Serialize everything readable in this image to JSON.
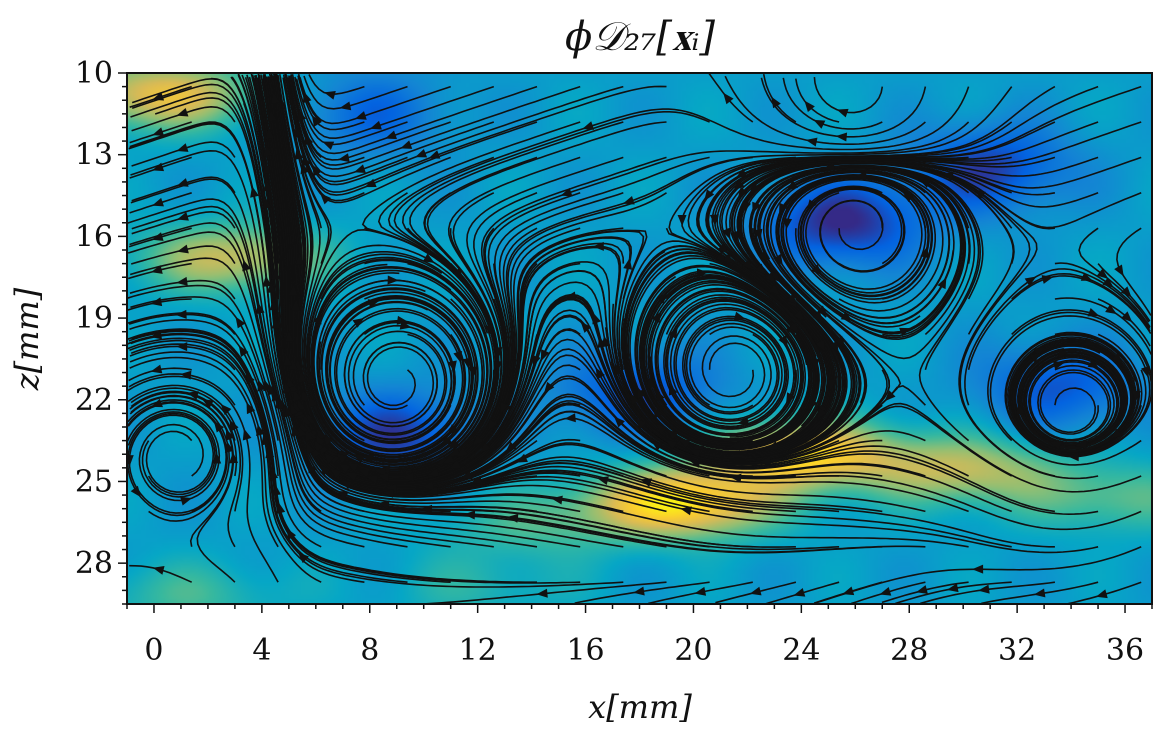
{
  "chart_data": {
    "type": "heatmap",
    "subtype": "streamline plot over scalar field",
    "title": "ϕ𝒟₂₇[𝐱ᵢ]",
    "xlabel": "x[mm]",
    "ylabel": "z[mm]",
    "xlim": [
      -1,
      37
    ],
    "ylim": [
      29.5,
      10
    ],
    "y_inverted": true,
    "x_ticks": [
      "0",
      "4",
      "8",
      "12",
      "16",
      "20",
      "24",
      "28",
      "32",
      "36"
    ],
    "y_ticks": [
      "10",
      "13",
      "16",
      "19",
      "22",
      "25",
      "28"
    ],
    "grid": false,
    "colormap": "parula",
    "colormap_stops": [
      "#352a87",
      "#0363e1",
      "#1485d4",
      "#06a7c6",
      "#38b99e",
      "#92bf73",
      "#d9ba56",
      "#fcce2e",
      "#f9fb0e"
    ],
    "field_hotspots": [
      {
        "x": 2.9,
        "z": 16.8,
        "level": 0.72
      },
      {
        "x": 0.3,
        "z": 10.8,
        "level": 0.8
      },
      {
        "x": 19.5,
        "z": 25.8,
        "level": 0.95
      },
      {
        "x": 24.0,
        "z": 24.0,
        "level": 0.9
      },
      {
        "x": 30.0,
        "z": 24.6,
        "level": 0.7
      },
      {
        "x": 35.5,
        "z": 25.6,
        "level": 0.55
      },
      {
        "x": 14.0,
        "z": 26.6,
        "level": 0.5
      },
      {
        "x": 12.0,
        "z": 28.9,
        "level": 0.45
      },
      {
        "x": 1.2,
        "z": 29.2,
        "level": 0.5
      }
    ],
    "field_coldspots": [
      {
        "x": 25.5,
        "z": 15.5,
        "level": 0.0
      },
      {
        "x": 31.0,
        "z": 13.5,
        "level": 0.05
      },
      {
        "x": 9.0,
        "z": 23.3,
        "level": 0.05
      },
      {
        "x": 18.0,
        "z": 21.8,
        "level": 0.08
      },
      {
        "x": 33.5,
        "z": 21.5,
        "level": 0.1
      },
      {
        "x": 8.0,
        "z": 11.5,
        "level": 0.15
      }
    ],
    "vortices": [
      {
        "x": 9.0,
        "z": 21.4,
        "sense": "cw"
      },
      {
        "x": 21.5,
        "z": 21.0,
        "sense": "cw"
      },
      {
        "x": 26.0,
        "z": 15.5,
        "sense": "ccw"
      },
      {
        "x": 34.0,
        "z": 22.5,
        "sense": "cw"
      },
      {
        "x": 26.0,
        "z": 10.6,
        "sense": "cw"
      },
      {
        "x": 0.8,
        "z": 24.0,
        "sense": "ccw"
      }
    ],
    "mean_flow": {
      "u": -0.15,
      "w": 0.05
    }
  }
}
